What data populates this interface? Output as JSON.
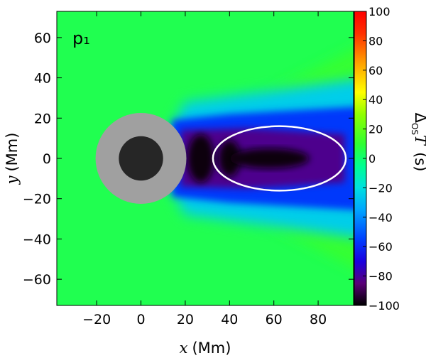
{
  "chart_data": {
    "type": "heatmap",
    "panel_label": "p₁",
    "xlabel_var": "x",
    "xlabel_unit": "(Mm)",
    "ylabel_var": "y",
    "ylabel_unit": "(Mm)",
    "xlim": [
      -38,
      96
    ],
    "ylim": [
      -73,
      73
    ],
    "xticks": [
      -20,
      0,
      20,
      40,
      60,
      80
    ],
    "yticks": [
      -60,
      -40,
      -20,
      0,
      20,
      40,
      60
    ],
    "colorbar": {
      "label_main": "Δ",
      "label_sub": "OS",
      "label_var": "T",
      "label_unit": "(s)",
      "range": [
        -100,
        100
      ],
      "ticks": [
        -100,
        -80,
        -60,
        -40,
        -20,
        0,
        20,
        40,
        60,
        80,
        100
      ],
      "colormap_stops": [
        {
          "v": -100,
          "color": "#000000"
        },
        {
          "v": -85,
          "color": "#5a0078"
        },
        {
          "v": -70,
          "color": "#1a00e0"
        },
        {
          "v": -55,
          "color": "#0040ff"
        },
        {
          "v": -35,
          "color": "#00a6ff"
        },
        {
          "v": -20,
          "color": "#00e0e0"
        },
        {
          "v": -5,
          "color": "#00ff90"
        },
        {
          "v": 10,
          "color": "#30ff30"
        },
        {
          "v": 30,
          "color": "#90ff00"
        },
        {
          "v": 45,
          "color": "#ffff00"
        },
        {
          "v": 65,
          "color": "#ffa000"
        },
        {
          "v": 85,
          "color": "#ff3000"
        },
        {
          "v": 100,
          "color": "#ff0000"
        }
      ]
    },
    "background_value": 5,
    "sunspot": {
      "center": [
        0,
        0
      ],
      "penumbra_radius": 20.5,
      "umbra_radius": 10,
      "penumbra_color": "#a0a0a0",
      "umbra_color": "#262626"
    },
    "ellipse": {
      "center": [
        62.5,
        0
      ],
      "semi_x": 30,
      "semi_y": 16,
      "color": "#ffffff"
    }
  }
}
